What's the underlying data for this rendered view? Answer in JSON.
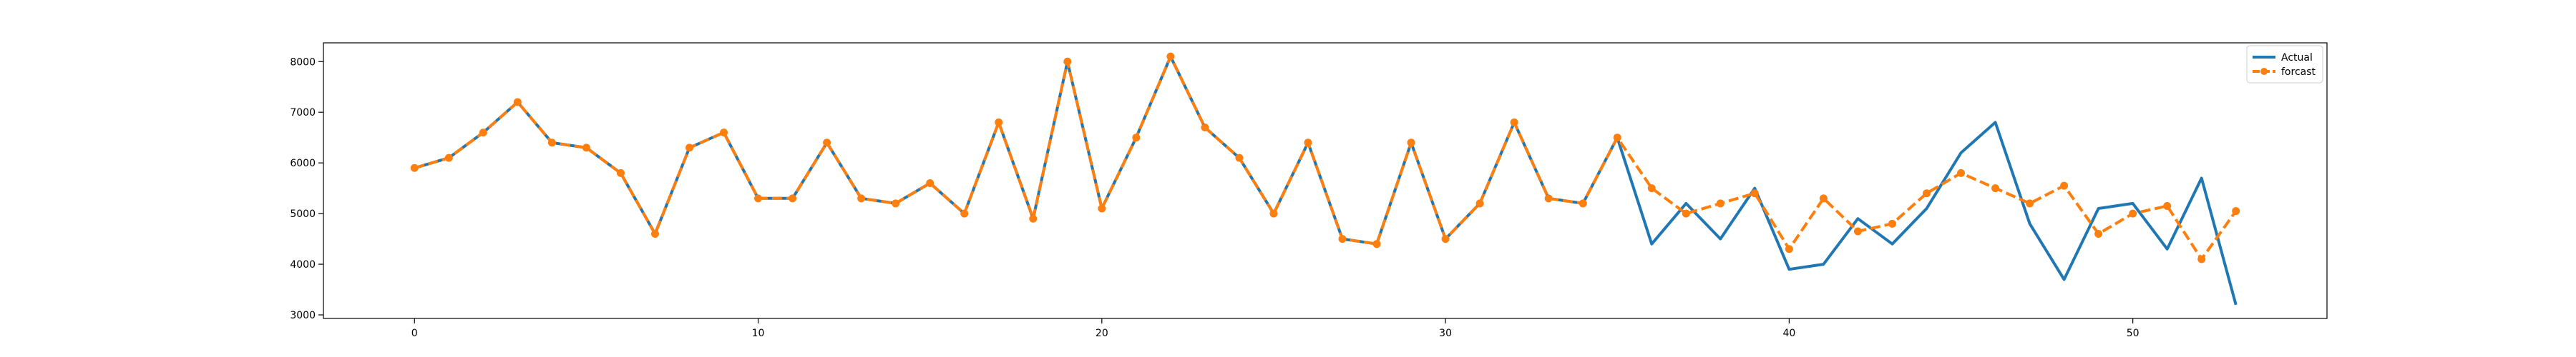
{
  "chart_data": {
    "type": "line",
    "x": [
      0,
      1,
      2,
      3,
      4,
      5,
      6,
      7,
      8,
      9,
      10,
      11,
      12,
      13,
      14,
      15,
      16,
      17,
      18,
      19,
      20,
      21,
      22,
      23,
      24,
      25,
      26,
      27,
      28,
      29,
      30,
      31,
      32,
      33,
      34,
      35,
      36,
      37,
      38,
      39,
      40,
      41,
      42,
      43,
      44,
      45,
      46,
      47,
      48,
      49,
      50,
      51,
      52,
      53
    ],
    "series": [
      {
        "name": "Actual",
        "color": "#1f77b4",
        "linestyle": "solid",
        "marker": "none",
        "values": [
          5900,
          6100,
          6600,
          7200,
          6400,
          6300,
          5800,
          4600,
          6300,
          6600,
          5300,
          5300,
          6400,
          5300,
          5200,
          5600,
          5000,
          6800,
          4900,
          8000,
          5100,
          6500,
          8100,
          6700,
          6100,
          5000,
          6400,
          4500,
          4400,
          6400,
          4500,
          5200,
          6800,
          5300,
          5200,
          6500,
          4400,
          5200,
          4500,
          5500,
          3900,
          4000,
          4900,
          4400,
          5100,
          6200,
          6800,
          4800,
          3700,
          5100,
          5200,
          4300,
          5700,
          3200
        ]
      },
      {
        "name": "forcast",
        "color": "#ff7f0e",
        "linestyle": "dashed",
        "marker": "circle",
        "values": [
          5900,
          6100,
          6600,
          7200,
          6400,
          6300,
          5800,
          4600,
          6300,
          6600,
          5300,
          5300,
          6400,
          5300,
          5200,
          5600,
          5000,
          6800,
          4900,
          8000,
          5100,
          6500,
          8100,
          6700,
          6100,
          5000,
          6400,
          4500,
          4400,
          6400,
          4500,
          5200,
          6800,
          5300,
          5200,
          6500,
          5500,
          5000,
          5200,
          5400,
          4300,
          5300,
          4650,
          4800,
          5400,
          5800,
          5500,
          5200,
          5550,
          4600,
          5000,
          5150,
          4100,
          5050
        ]
      }
    ],
    "xticks": [
      0,
      10,
      20,
      30,
      40,
      50
    ],
    "yticks": [
      3000,
      4000,
      5000,
      6000,
      7000,
      8000
    ],
    "xlim": [
      -2.65,
      55.65
    ],
    "ylim": [
      2930,
      8370
    ],
    "title": "",
    "xlabel": "",
    "ylabel": "",
    "grid": false,
    "legend_position": "upper right"
  }
}
